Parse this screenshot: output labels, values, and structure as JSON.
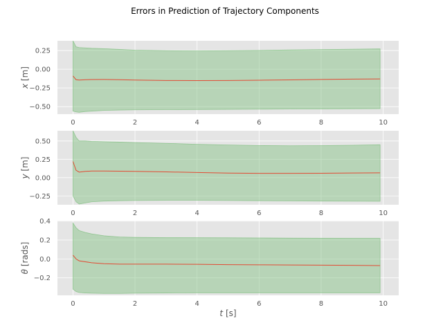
{
  "figure": {
    "title": "Errors in Prediction of Trajectory Components",
    "background": "#ffffff",
    "axes_background": "#e5e5e5",
    "grid_color": "#ffffff",
    "band_color": "#7fbf7f",
    "line_color": "#e24a33"
  },
  "chart_data": [
    {
      "type": "line",
      "title": "",
      "xlabel": "",
      "ylabel_main": "x",
      "ylabel_unit": "[m]",
      "xlim": [
        -0.5,
        10.5
      ],
      "ylim": [
        -0.6,
        0.38
      ],
      "grid": true,
      "xticks": [
        0,
        2,
        4,
        6,
        8,
        10
      ],
      "xtick_labels": [
        "0",
        "2",
        "4",
        "6",
        "8",
        "10"
      ],
      "yticks": [
        -0.5,
        -0.25,
        0.0,
        0.25
      ],
      "ytick_labels": [
        "−0.50",
        "−0.25",
        "0.00",
        "0.25"
      ],
      "x": [
        0,
        0.1,
        0.2,
        0.4,
        0.6,
        1,
        1.5,
        2,
        3,
        4,
        5,
        6,
        7,
        8,
        9,
        9.9
      ],
      "series": [
        {
          "role": "mean",
          "values": [
            -0.09,
            -0.14,
            -0.145,
            -0.14,
            -0.138,
            -0.137,
            -0.14,
            -0.145,
            -0.15,
            -0.152,
            -0.15,
            -0.147,
            -0.142,
            -0.137,
            -0.132,
            -0.13
          ]
        },
        {
          "role": "upper",
          "values": [
            0.38,
            0.3,
            0.29,
            0.285,
            0.28,
            0.275,
            0.265,
            0.255,
            0.248,
            0.246,
            0.248,
            0.252,
            0.258,
            0.263,
            0.268,
            0.272
          ]
        },
        {
          "role": "lower",
          "values": [
            -0.56,
            -0.57,
            -0.575,
            -0.565,
            -0.56,
            -0.55,
            -0.545,
            -0.542,
            -0.54,
            -0.538,
            -0.536,
            -0.534,
            -0.532,
            -0.53,
            -0.528,
            -0.527
          ]
        }
      ]
    },
    {
      "type": "line",
      "title": "",
      "xlabel": "",
      "ylabel_main": "y",
      "ylabel_unit": "[m]",
      "xlim": [
        -0.5,
        10.5
      ],
      "ylim": [
        -0.37,
        0.64
      ],
      "grid": true,
      "xticks": [
        0,
        2,
        4,
        6,
        8,
        10
      ],
      "xtick_labels": [
        "0",
        "2",
        "4",
        "6",
        "8",
        "10"
      ],
      "yticks": [
        -0.25,
        0.0,
        0.25,
        0.5
      ],
      "ytick_labels": [
        "−0.25",
        "0.00",
        "0.25",
        "0.50"
      ],
      "x": [
        0,
        0.1,
        0.2,
        0.4,
        0.6,
        1,
        1.5,
        2,
        3,
        4,
        5,
        6,
        7,
        8,
        9,
        9.9
      ],
      "series": [
        {
          "role": "mean",
          "values": [
            0.22,
            0.1,
            0.075,
            0.085,
            0.09,
            0.09,
            0.088,
            0.085,
            0.078,
            0.07,
            0.062,
            0.058,
            0.058,
            0.06,
            0.063,
            0.065
          ]
        },
        {
          "role": "upper",
          "values": [
            0.64,
            0.55,
            0.5,
            0.5,
            0.495,
            0.49,
            0.485,
            0.478,
            0.468,
            0.455,
            0.445,
            0.438,
            0.435,
            0.437,
            0.442,
            0.448
          ]
        },
        {
          "role": "lower",
          "values": [
            -0.25,
            -0.33,
            -0.36,
            -0.345,
            -0.33,
            -0.32,
            -0.315,
            -0.312,
            -0.31,
            -0.31,
            -0.312,
            -0.315,
            -0.318,
            -0.32,
            -0.322,
            -0.323
          ]
        }
      ]
    },
    {
      "type": "line",
      "title": "",
      "xlabel": "t",
      "xlabel_unit": "[s]",
      "ylabel_main": "θ",
      "ylabel_unit": "[rads]",
      "xlim": [
        -0.5,
        10.5
      ],
      "ylim": [
        -0.385,
        0.405
      ],
      "grid": true,
      "xticks": [
        0,
        2,
        4,
        6,
        8,
        10
      ],
      "xtick_labels": [
        "0",
        "2",
        "4",
        "6",
        "8",
        "10"
      ],
      "yticks": [
        -0.2,
        0.0,
        0.2,
        0.4
      ],
      "ytick_labels": [
        "−0.2",
        "0.0",
        "0.2",
        "0.4"
      ],
      "x": [
        0,
        0.1,
        0.2,
        0.4,
        0.6,
        1,
        1.5,
        2,
        3,
        4,
        5,
        6,
        7,
        8,
        9,
        9.9
      ],
      "series": [
        {
          "role": "mean",
          "values": [
            0.04,
            0.0,
            -0.02,
            -0.03,
            -0.04,
            -0.05,
            -0.055,
            -0.055,
            -0.055,
            -0.057,
            -0.06,
            -0.062,
            -0.064,
            -0.066,
            -0.068,
            -0.07
          ]
        },
        {
          "role": "upper",
          "values": [
            0.38,
            0.33,
            0.3,
            0.28,
            0.265,
            0.245,
            0.232,
            0.228,
            0.226,
            0.225,
            0.224,
            0.222,
            0.22,
            0.219,
            0.218,
            0.218
          ]
        },
        {
          "role": "lower",
          "values": [
            -0.32,
            -0.345,
            -0.355,
            -0.36,
            -0.362,
            -0.365,
            -0.365,
            -0.362,
            -0.36,
            -0.358,
            -0.358,
            -0.358,
            -0.358,
            -0.358,
            -0.358,
            -0.358
          ]
        }
      ]
    }
  ]
}
